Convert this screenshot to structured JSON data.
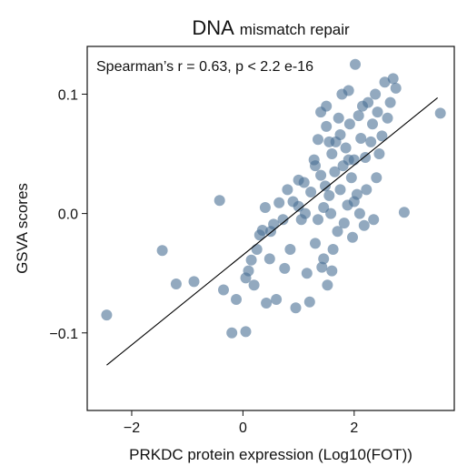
{
  "chart_data": {
    "type": "scatter",
    "title": "DNA",
    "subtitle": "mismatch repair",
    "xlabel": "PRKDC protein expression (Log10(FOT))",
    "ylabel": "GSVA scores",
    "annotation": "Spearman’s r = 0.63, p < 2.2 e-16",
    "xlim": [
      -2.8,
      3.8
    ],
    "ylim": [
      -0.165,
      0.14
    ],
    "xticks": [
      -2,
      0,
      2
    ],
    "xtick_labels": [
      "−2",
      "0",
      "2"
    ],
    "yticks": [
      -0.1,
      0.0,
      0.1
    ],
    "ytick_labels": [
      "−0.1",
      "0.0",
      "0.1"
    ],
    "grid": false,
    "point_color": "#4a6f94",
    "line_color": "#000000",
    "fit_line": {
      "x": [
        -2.45,
        3.5
      ],
      "y": [
        -0.127,
        0.097
      ]
    },
    "points": [
      [
        -2.45,
        -0.085
      ],
      [
        -1.45,
        -0.031
      ],
      [
        -1.2,
        -0.059
      ],
      [
        -0.88,
        -0.057
      ],
      [
        -0.42,
        0.011
      ],
      [
        -0.35,
        -0.064
      ],
      [
        -0.12,
        -0.072
      ],
      [
        -0.2,
        -0.1
      ],
      [
        0.05,
        -0.099
      ],
      [
        0.05,
        -0.054
      ],
      [
        0.1,
        -0.048
      ],
      [
        0.15,
        -0.039
      ],
      [
        0.2,
        -0.06
      ],
      [
        0.25,
        -0.03
      ],
      [
        0.3,
        -0.018
      ],
      [
        0.35,
        -0.014
      ],
      [
        0.4,
        0.005
      ],
      [
        0.42,
        -0.075
      ],
      [
        0.48,
        -0.038
      ],
      [
        0.5,
        -0.015
      ],
      [
        0.55,
        -0.009
      ],
      [
        0.6,
        -0.072
      ],
      [
        0.65,
        0.009
      ],
      [
        0.72,
        -0.005
      ],
      [
        0.75,
        -0.046
      ],
      [
        0.8,
        0.02
      ],
      [
        0.85,
        -0.03
      ],
      [
        0.9,
        0.01
      ],
      [
        0.95,
        -0.079
      ],
      [
        1.0,
        0.006
      ],
      [
        1.0,
        0.028
      ],
      [
        1.05,
        -0.005
      ],
      [
        1.1,
        0.026
      ],
      [
        1.15,
        -0.05
      ],
      [
        1.12,
        0.0
      ],
      [
        1.2,
        -0.074
      ],
      [
        1.22,
        0.018
      ],
      [
        1.28,
        0.045
      ],
      [
        1.3,
        -0.025
      ],
      [
        1.35,
        0.062
      ],
      [
        1.35,
        -0.005
      ],
      [
        1.4,
        0.032
      ],
      [
        1.42,
        -0.045
      ],
      [
        1.45,
        0.005
      ],
      [
        1.48,
        0.023
      ],
      [
        1.5,
        0.073
      ],
      [
        1.5,
        0.09
      ],
      [
        1.52,
        -0.06
      ],
      [
        1.55,
        0.015
      ],
      [
        1.58,
        0.0
      ],
      [
        1.6,
        0.05
      ],
      [
        1.62,
        -0.03
      ],
      [
        1.65,
        0.035
      ],
      [
        1.67,
        0.06
      ],
      [
        1.7,
        -0.015
      ],
      [
        1.72,
        0.08
      ],
      [
        1.75,
        0.02
      ],
      [
        1.78,
        0.1
      ],
      [
        1.8,
        0.04
      ],
      [
        1.82,
        -0.008
      ],
      [
        1.85,
        0.055
      ],
      [
        1.88,
        0.007
      ],
      [
        1.9,
        0.103
      ],
      [
        1.92,
        0.075
      ],
      [
        1.95,
        0.03
      ],
      [
        1.97,
        -0.02
      ],
      [
        2.0,
        0.045
      ],
      [
        2.02,
        0.125
      ],
      [
        2.05,
        0.016
      ],
      [
        2.08,
        0.082
      ],
      [
        2.1,
        0.0
      ],
      [
        2.12,
        0.063
      ],
      [
        2.15,
        0.09
      ],
      [
        2.18,
        -0.01
      ],
      [
        2.2,
        0.047
      ],
      [
        2.22,
        0.02
      ],
      [
        2.25,
        0.093
      ],
      [
        2.3,
        0.06
      ],
      [
        2.33,
        0.075
      ],
      [
        2.35,
        -0.005
      ],
      [
        2.38,
        0.1
      ],
      [
        2.4,
        0.03
      ],
      [
        2.42,
        0.085
      ],
      [
        2.45,
        0.05
      ],
      [
        2.5,
        0.065
      ],
      [
        2.55,
        0.11
      ],
      [
        2.6,
        0.08
      ],
      [
        2.65,
        0.093
      ],
      [
        2.7,
        0.113
      ],
      [
        2.75,
        0.105
      ],
      [
        2.9,
        0.001
      ],
      [
        3.55,
        0.084
      ],
      [
        1.45,
        -0.038
      ],
      [
        1.6,
        -0.048
      ],
      [
        1.3,
        0.04
      ],
      [
        1.75,
        0.066
      ],
      [
        2.0,
        0.01
      ],
      [
        1.55,
        0.06
      ],
      [
        1.4,
        0.085
      ],
      [
        1.9,
        0.045
      ]
    ]
  }
}
